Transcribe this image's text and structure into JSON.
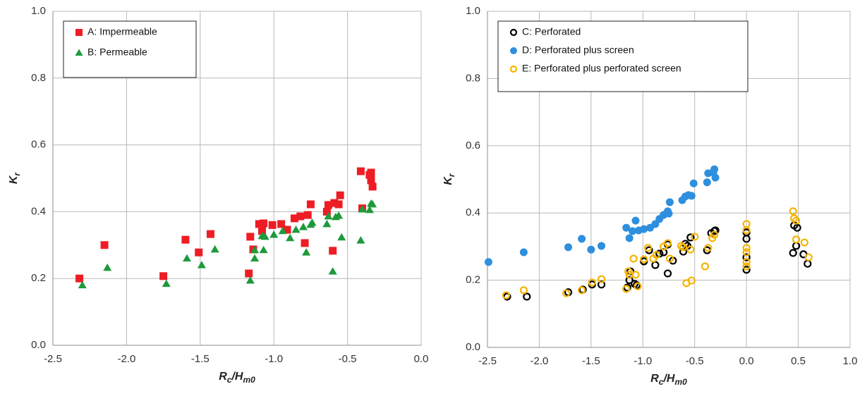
{
  "chart_data": [
    {
      "type": "scatter",
      "ylabel": [
        "K",
        "r"
      ],
      "xlabel": [
        "R",
        "c",
        "/H",
        "m0"
      ],
      "grid": true,
      "legend": "upper left",
      "xlim": [
        -2.5,
        0.0
      ],
      "ylim": [
        0.0,
        1.0
      ],
      "xticks": [
        {
          "value": -2.5,
          "label": "-2.5"
        },
        {
          "value": -2.0,
          "label": "-2.0"
        },
        {
          "value": -1.5,
          "label": "-1.5"
        },
        {
          "value": -1.0,
          "label": "-1.0"
        },
        {
          "value": -0.5,
          "label": "-0.5"
        },
        {
          "value": 0.0,
          "label": "0.0"
        }
      ],
      "yticks": [
        {
          "value": 0.0,
          "label": "0.0"
        },
        {
          "value": 0.2,
          "label": "0.2"
        },
        {
          "value": 0.4,
          "label": "0.4"
        },
        {
          "value": 0.6,
          "label": "0.6"
        },
        {
          "value": 0.8,
          "label": "0.8"
        },
        {
          "value": 1.0,
          "label": "1.0"
        }
      ],
      "series": [
        {
          "name": "A: Impermeable",
          "color": "#ee1c24",
          "marker": "square",
          "filled": true,
          "x": [
            -2.32,
            -2.15,
            -1.75,
            -1.6,
            -1.51,
            -1.43,
            -1.17,
            -1.16,
            -1.14,
            -1.1,
            -1.07,
            -1.08,
            -1.01,
            -0.95,
            -0.91,
            -0.86,
            -0.82,
            -0.79,
            -0.77,
            -0.75,
            -0.64,
            -0.63,
            -0.6,
            -0.59,
            -0.56,
            -0.55,
            -0.41,
            -0.4,
            -0.35,
            -0.34,
            -0.33,
            -0.34
          ],
          "values": [
            0.2,
            0.3,
            0.207,
            0.316,
            0.278,
            0.333,
            0.215,
            0.325,
            0.287,
            0.363,
            0.365,
            0.342,
            0.36,
            0.363,
            0.346,
            0.38,
            0.386,
            0.306,
            0.39,
            0.422,
            0.4,
            0.42,
            0.283,
            0.426,
            0.422,
            0.449,
            0.521,
            0.41,
            0.51,
            0.494,
            0.475,
            0.517
          ]
        },
        {
          "name": "B: Permeable",
          "color": "#1e9a3c",
          "marker": "triangle",
          "filled": true,
          "x": [
            -2.3,
            -2.13,
            -1.73,
            -1.59,
            -1.49,
            -1.4,
            -1.16,
            -1.13,
            -1.13,
            -1.08,
            -1.07,
            -1.06,
            -1.0,
            -0.94,
            -0.89,
            -0.85,
            -0.8,
            -0.78,
            -0.75,
            -0.74,
            -0.64,
            -0.63,
            -0.6,
            -0.58,
            -0.56,
            -0.54,
            -0.41,
            -0.4,
            -0.35,
            -0.34,
            -0.33
          ],
          "values": [
            0.18,
            0.232,
            0.184,
            0.26,
            0.24,
            0.287,
            0.194,
            0.26,
            0.285,
            0.327,
            0.285,
            0.325,
            0.331,
            0.342,
            0.321,
            0.346,
            0.354,
            0.278,
            0.361,
            0.367,
            0.363,
            0.386,
            0.221,
            0.384,
            0.388,
            0.323,
            0.314,
            0.407,
            0.405,
            0.424,
            0.422
          ]
        }
      ]
    },
    {
      "type": "scatter",
      "ylabel": [
        "K",
        "r"
      ],
      "xlabel": [
        "R",
        "c",
        "/H",
        "m0"
      ],
      "grid": true,
      "legend": "upper left",
      "xlim": [
        -2.5,
        1.0
      ],
      "ylim": [
        0.0,
        1.0
      ],
      "xticks": [
        {
          "value": -2.5,
          "label": "-2.5"
        },
        {
          "value": -2.0,
          "label": "-2.0"
        },
        {
          "value": -1.5,
          "label": "-1.5"
        },
        {
          "value": -1.0,
          "label": "-1.0"
        },
        {
          "value": -0.5,
          "label": "-0.5"
        },
        {
          "value": 0.0,
          "label": "0.0"
        },
        {
          "value": 0.5,
          "label": "0.5"
        },
        {
          "value": 1.0,
          "label": "1.0"
        }
      ],
      "yticks": [
        {
          "value": 0.0,
          "label": "0.0"
        },
        {
          "value": 0.2,
          "label": "0.2"
        },
        {
          "value": 0.4,
          "label": "0.4"
        },
        {
          "value": 0.6,
          "label": "0.6"
        },
        {
          "value": 0.8,
          "label": "0.8"
        },
        {
          "value": 1.0,
          "label": "1.0"
        }
      ],
      "series": [
        {
          "name": "C: Perforated",
          "color": "#000000",
          "marker": "circle",
          "filled": false,
          "x": [
            -2.31,
            -2.12,
            -1.72,
            -1.58,
            -1.49,
            -1.4,
            -1.15,
            -1.13,
            -1.12,
            -1.08,
            -1.06,
            -0.99,
            -0.94,
            -0.88,
            -0.84,
            -0.8,
            -0.76,
            -0.76,
            -0.71,
            -0.61,
            -0.59,
            -0.57,
            -0.54,
            -0.38,
            -0.34,
            -0.31,
            -0.3,
            0.0,
            0.0,
            0.0,
            0.0,
            0.45,
            0.46,
            0.48,
            0.49,
            0.55,
            0.59
          ],
          "values": [
            0.151,
            0.151,
            0.164,
            0.172,
            0.187,
            0.187,
            0.178,
            0.2,
            0.226,
            0.189,
            0.185,
            0.256,
            0.289,
            0.245,
            0.279,
            0.283,
            0.22,
            0.306,
            0.258,
            0.285,
            0.308,
            0.302,
            0.327,
            0.289,
            0.34,
            0.346,
            0.348,
            0.231,
            0.268,
            0.323,
            0.342,
            0.281,
            0.363,
            0.302,
            0.356,
            0.277,
            0.249
          ]
        },
        {
          "name": "D: Perforated plus screen",
          "color": "#2e8fde",
          "marker": "circle",
          "filled": true,
          "x": [
            -2.49,
            -2.15,
            -1.72,
            -1.59,
            -1.5,
            -1.4,
            -1.16,
            -1.13,
            -1.1,
            -1.07,
            -1.04,
            -0.99,
            -0.93,
            -0.88,
            -0.84,
            -0.8,
            -0.76,
            -0.75,
            -0.74,
            -0.62,
            -0.59,
            -0.56,
            -0.53,
            -0.51,
            -0.38,
            -0.37,
            -0.32,
            -0.31,
            -0.3
          ],
          "values": [
            0.254,
            0.283,
            0.298,
            0.323,
            0.291,
            0.302,
            0.356,
            0.325,
            0.346,
            0.377,
            0.348,
            0.352,
            0.356,
            0.367,
            0.382,
            0.394,
            0.405,
            0.398,
            0.432,
            0.438,
            0.449,
            0.453,
            0.451,
            0.488,
            0.491,
            0.518,
            0.52,
            0.53,
            0.505
          ]
        },
        {
          "name": "E: Perforated plus perforated screen",
          "color": "#f5b400",
          "marker": "circle",
          "filled": false,
          "x": [
            -2.32,
            -2.15,
            -1.74,
            -1.59,
            -1.49,
            -1.4,
            -1.16,
            -1.14,
            -1.13,
            -1.09,
            -1.07,
            -1.05,
            -0.99,
            -0.95,
            -0.9,
            -0.87,
            -0.8,
            -0.76,
            -0.74,
            -0.63,
            -0.61,
            -0.58,
            -0.54,
            -0.53,
            -0.5,
            -0.4,
            -0.37,
            -0.33,
            -0.31,
            0.0,
            0.0,
            0.0,
            0.0,
            0.0,
            0.0,
            0.45,
            0.46,
            0.48,
            0.48,
            0.56,
            0.6
          ],
          "values": [
            0.155,
            0.17,
            0.161,
            0.17,
            0.193,
            0.203,
            0.174,
            0.226,
            0.216,
            0.264,
            0.216,
            0.182,
            0.262,
            0.296,
            0.264,
            0.275,
            0.3,
            0.31,
            0.264,
            0.302,
            0.298,
            0.191,
            0.291,
            0.199,
            0.329,
            0.241,
            0.296,
            0.325,
            0.335,
            0.367,
            0.348,
            0.296,
            0.283,
            0.254,
            0.241,
            0.405,
            0.384,
            0.377,
            0.321,
            0.312,
            0.268
          ]
        }
      ]
    }
  ]
}
